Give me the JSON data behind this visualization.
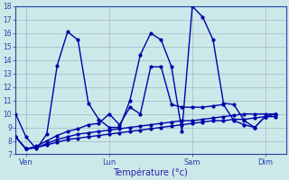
{
  "xlabel": "Température (°c)",
  "background_color": "#cce8e8",
  "grid_color": "#99aabb",
  "line_color": "#0000aa",
  "ylim": [
    7,
    18
  ],
  "yticks": [
    7,
    8,
    9,
    10,
    11,
    12,
    13,
    14,
    15,
    16,
    17,
    18
  ],
  "xtick_labels": [
    "Ven",
    "Lun",
    "Sam",
    "Dim"
  ],
  "xtick_positions": [
    1,
    9,
    17,
    24
  ],
  "xlim": [
    0,
    26
  ],
  "series": [
    {
      "x": [
        0,
        1,
        2,
        3,
        4,
        5,
        6,
        7,
        8,
        9,
        10,
        11,
        12,
        13,
        14,
        15,
        16,
        17,
        18,
        19,
        20,
        21,
        22,
        23,
        24,
        25
      ],
      "y": [
        10.0,
        8.3,
        7.4,
        8.5,
        13.6,
        16.1,
        15.5,
        10.8,
        9.6,
        9.0,
        9.0,
        11.0,
        14.4,
        16.0,
        15.5,
        13.5,
        8.7,
        18.0,
        17.2,
        15.5,
        10.8,
        10.7,
        9.5,
        9.0,
        9.8,
        10.0
      ]
    },
    {
      "x": [
        0,
        1,
        2,
        3,
        4,
        5,
        6,
        7,
        8,
        9,
        10,
        11,
        12,
        13,
        14,
        15,
        16,
        17,
        18,
        19,
        20,
        21,
        22,
        23,
        24,
        25
      ],
      "y": [
        8.3,
        7.4,
        7.5,
        7.7,
        7.9,
        8.1,
        8.2,
        8.3,
        8.4,
        8.5,
        8.6,
        8.7,
        8.8,
        8.9,
        9.0,
        9.1,
        9.2,
        9.3,
        9.4,
        9.5,
        9.5,
        9.6,
        9.6,
        9.7,
        9.8,
        9.8
      ]
    },
    {
      "x": [
        0,
        1,
        2,
        3,
        4,
        5,
        6,
        7,
        8,
        9,
        10,
        11,
        12,
        13,
        14,
        15,
        16,
        17,
        18,
        19,
        20,
        21,
        22,
        23,
        24,
        25
      ],
      "y": [
        8.3,
        7.4,
        7.5,
        7.8,
        8.1,
        8.3,
        8.5,
        8.6,
        8.7,
        8.8,
        8.9,
        9.0,
        9.1,
        9.2,
        9.3,
        9.4,
        9.5,
        9.5,
        9.6,
        9.7,
        9.8,
        9.9,
        10.0,
        10.0,
        10.0,
        10.0
      ]
    },
    {
      "x": [
        0,
        1,
        2,
        3,
        4,
        5,
        6,
        7,
        8,
        9,
        10,
        11,
        12,
        13,
        14,
        15,
        16,
        17,
        18,
        19,
        20,
        21,
        22,
        23,
        24,
        25
      ],
      "y": [
        8.3,
        7.4,
        7.6,
        8.0,
        8.4,
        8.7,
        8.9,
        9.2,
        9.3,
        10.0,
        9.2,
        10.5,
        10.0,
        13.5,
        13.5,
        10.7,
        10.5,
        10.5,
        10.5,
        10.6,
        10.7,
        9.5,
        9.2,
        9.0,
        9.8,
        10.0
      ]
    }
  ]
}
